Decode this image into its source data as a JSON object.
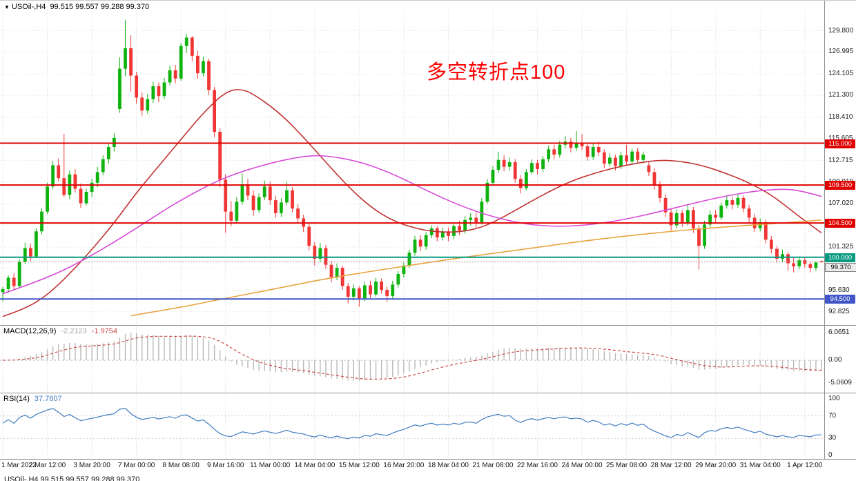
{
  "header": {
    "collapse_icon": "▼",
    "symbol": "USOil-,H4",
    "ohlc": "99.515 99.557 99.288 99.370"
  },
  "annotation": {
    "text": "多空转折点100",
    "color": "#FF0000"
  },
  "indicators": {
    "macd": {
      "label": "MACD(12,26,9)",
      "main_value": "-2.2123",
      "signal_value": "-1.9754",
      "axis_labels": [
        "6.0651",
        "0.00",
        "-5.0609"
      ]
    },
    "rsi": {
      "label": "RSI(14)",
      "value": "37.7607",
      "axis_labels": [
        "100",
        "70",
        "30",
        "0"
      ],
      "levels": [
        70,
        30
      ]
    }
  },
  "footer": {
    "clipped_text": "USOil-,H4 99.515 99.557 99.288 99.370"
  },
  "chart_data": {
    "type": "candlestick",
    "title": "USOil- H4 crude oil chart with horizontal support/resistance lines",
    "symbol": "USOil-",
    "timeframe": "H4",
    "ylim": [
      91.8,
      132.3
    ],
    "bars_per_label": 8,
    "colors": {
      "up": "#0fb30f",
      "down": "#f03535",
      "macd_hist": "#b8b8b8",
      "macd_signal": "#cc4a4a",
      "rsi": "#3f7cbf"
    },
    "price_axis_labels": [
      "129.800",
      "126.995",
      "124.105",
      "121.300",
      "118.410",
      "115.605",
      "112.715",
      "109.910",
      "107.020",
      "101.325",
      "98.520",
      "95.630",
      "92.825"
    ],
    "time_labels": [
      "1 Mar 2022",
      "2 Mar 12:00",
      "3 Mar 20:00",
      "7 Mar 00:00",
      "8 Mar 08:00",
      "9 Mar 16:00",
      "11 Mar 00:00",
      "14 Mar 04:00",
      "15 Mar 12:00",
      "16 Mar 20:00",
      "18 Mar 04:00",
      "21 Mar 08:00",
      "22 Mar 16:00",
      "24 Mar 00:00",
      "25 Mar 08:00",
      "28 Mar 12:00",
      "29 Mar 20:00",
      "31 Mar 04:00",
      "1 Apr 12:00"
    ],
    "hlines": [
      {
        "price": 115.0,
        "label": "115.000",
        "color": "#e00000",
        "width": 2
      },
      {
        "price": 109.5,
        "label": "109.500",
        "color": "#e00000",
        "width": 2
      },
      {
        "price": 104.5,
        "label": "104.500",
        "color": "#e00000",
        "width": 2
      },
      {
        "price": 100.0,
        "label": "100.000",
        "color": "#089981",
        "width": 2
      },
      {
        "price": 94.5,
        "label": "94.500",
        "color": "#4056c8",
        "width": 2
      }
    ],
    "current_price": {
      "price": 99.37,
      "label": "99.370"
    },
    "ma_lines": [
      {
        "name": "ma-red",
        "color": "#c13232",
        "points": [
          [
            0,
            92.2
          ],
          [
            4,
            93.2
          ],
          [
            8,
            95.0
          ],
          [
            12,
            97.8
          ],
          [
            16,
            101.0
          ],
          [
            20,
            104.5
          ],
          [
            24,
            108.5
          ],
          [
            28,
            112.0
          ],
          [
            32,
            115.5
          ],
          [
            36,
            119.0
          ],
          [
            40,
            121.8
          ],
          [
            43,
            122.2
          ],
          [
            46,
            121.0
          ],
          [
            50,
            118.8
          ],
          [
            54,
            115.8
          ],
          [
            58,
            112.5
          ],
          [
            62,
            109.3
          ],
          [
            66,
            106.6
          ],
          [
            70,
            104.8
          ],
          [
            74,
            103.8
          ],
          [
            78,
            103.3
          ],
          [
            82,
            103.3
          ],
          [
            86,
            103.9
          ],
          [
            90,
            105.3
          ],
          [
            94,
            107.0
          ],
          [
            98,
            108.6
          ],
          [
            102,
            110.0
          ],
          [
            106,
            111.0
          ],
          [
            110,
            111.8
          ],
          [
            114,
            112.4
          ],
          [
            118,
            112.8
          ],
          [
            122,
            112.6
          ],
          [
            126,
            112.0
          ],
          [
            130,
            111.0
          ],
          [
            134,
            109.8
          ],
          [
            138,
            108.2
          ],
          [
            141,
            106.5
          ],
          [
            144,
            104.8
          ],
          [
            147,
            103.2
          ]
        ]
      },
      {
        "name": "ma-magenta",
        "color": "#d84bd8",
        "points": [
          [
            0,
            95.2
          ],
          [
            8,
            97.2
          ],
          [
            16,
            100.2
          ],
          [
            24,
            103.8
          ],
          [
            32,
            107.6
          ],
          [
            40,
            110.6
          ],
          [
            48,
            112.4
          ],
          [
            54,
            113.3
          ],
          [
            58,
            113.4
          ],
          [
            64,
            112.6
          ],
          [
            70,
            111.0
          ],
          [
            76,
            108.8
          ],
          [
            82,
            106.8
          ],
          [
            88,
            105.3
          ],
          [
            94,
            104.3
          ],
          [
            100,
            104.0
          ],
          [
            106,
            104.3
          ],
          [
            112,
            105.0
          ],
          [
            118,
            106.0
          ],
          [
            124,
            107.1
          ],
          [
            130,
            108.1
          ],
          [
            136,
            108.8
          ],
          [
            141,
            109.0
          ],
          [
            144,
            108.6
          ],
          [
            147,
            108.0
          ]
        ]
      },
      {
        "name": "ma-orange",
        "color": "#e8a33d",
        "points": [
          [
            23,
            92.3
          ],
          [
            32,
            93.4
          ],
          [
            40,
            94.6
          ],
          [
            48,
            95.7
          ],
          [
            56,
            96.9
          ],
          [
            64,
            97.9
          ],
          [
            72,
            98.8
          ],
          [
            80,
            99.7
          ],
          [
            88,
            100.5
          ],
          [
            96,
            101.3
          ],
          [
            104,
            102.1
          ],
          [
            112,
            102.8
          ],
          [
            120,
            103.4
          ],
          [
            128,
            103.9
          ],
          [
            136,
            104.3
          ],
          [
            142,
            104.6
          ],
          [
            147,
            104.9
          ]
        ]
      }
    ],
    "candles": [
      [
        95.4,
        96.1,
        94.2,
        95.8
      ],
      [
        95.8,
        97.6,
        95.3,
        97.3
      ],
      [
        97.3,
        97.9,
        95.7,
        96.2
      ],
      [
        96.2,
        99.8,
        96.0,
        99.4
      ],
      [
        99.4,
        101.9,
        99.1,
        101.2
      ],
      [
        101.2,
        101.8,
        99.5,
        100.1
      ],
      [
        100.1,
        103.8,
        99.9,
        103.4
      ],
      [
        103.4,
        106.5,
        103.0,
        106.0
      ],
      [
        106.0,
        109.8,
        105.7,
        109.3
      ],
      [
        109.3,
        112.7,
        108.9,
        112.1
      ],
      [
        112.1,
        113.0,
        110.0,
        110.4
      ],
      [
        110.4,
        116.2,
        107.9,
        108.2
      ],
      [
        108.2,
        111.4,
        107.6,
        110.9
      ],
      [
        110.9,
        111.6,
        108.5,
        109.0
      ],
      [
        109.0,
        109.7,
        106.5,
        107.1
      ],
      [
        107.1,
        109.0,
        106.8,
        108.6
      ],
      [
        108.6,
        110.3,
        107.9,
        109.8
      ],
      [
        109.8,
        111.9,
        109.2,
        111.2
      ],
      [
        111.2,
        113.4,
        110.8,
        112.9
      ],
      [
        112.9,
        115.0,
        112.3,
        114.5
      ],
      [
        114.5,
        116.3,
        113.9,
        115.7
      ],
      [
        119.5,
        126.3,
        119.0,
        124.8
      ],
      [
        124.8,
        131.2,
        123.8,
        127.5
      ],
      [
        127.5,
        129.2,
        121.8,
        123.9
      ],
      [
        123.9,
        124.4,
        120.2,
        121.0
      ],
      [
        121.0,
        121.7,
        118.6,
        119.3
      ],
      [
        119.3,
        121.5,
        118.9,
        120.8
      ],
      [
        120.8,
        123.1,
        120.3,
        122.5
      ],
      [
        122.5,
        123.0,
        120.4,
        121.2
      ],
      [
        121.2,
        123.6,
        120.8,
        123.0
      ],
      [
        123.0,
        125.2,
        122.6,
        124.6
      ],
      [
        124.6,
        125.3,
        122.9,
        123.5
      ],
      [
        123.5,
        128.2,
        123.2,
        127.8
      ],
      [
        127.8,
        129.4,
        126.9,
        128.9
      ],
      [
        128.9,
        129.1,
        125.8,
        126.5
      ],
      [
        126.5,
        127.2,
        123.5,
        124.2
      ],
      [
        124.2,
        126.4,
        123.8,
        125.8
      ],
      [
        125.8,
        126.1,
        121.3,
        122.0
      ],
      [
        122.0,
        122.4,
        115.8,
        116.5
      ],
      [
        116.5,
        117.0,
        109.2,
        110.2
      ],
      [
        110.2,
        110.9,
        103.2,
        106.0
      ],
      [
        106.0,
        107.4,
        104.1,
        104.8
      ],
      [
        104.8,
        107.9,
        104.5,
        107.3
      ],
      [
        107.3,
        111.0,
        106.9,
        109.6
      ],
      [
        109.6,
        110.3,
        107.5,
        108.1
      ],
      [
        108.1,
        108.8,
        105.4,
        106.2
      ],
      [
        106.2,
        108.4,
        105.8,
        107.9
      ],
      [
        107.9,
        110.1,
        107.5,
        109.3
      ],
      [
        109.3,
        109.9,
        106.9,
        107.5
      ],
      [
        107.5,
        108.1,
        105.2,
        105.8
      ],
      [
        105.8,
        107.8,
        105.3,
        107.2
      ],
      [
        107.2,
        109.9,
        106.8,
        108.8
      ],
      [
        108.8,
        109.2,
        105.9,
        106.4
      ],
      [
        106.4,
        107.0,
        104.6,
        105.1
      ],
      [
        105.1,
        105.6,
        103.3,
        104.0
      ],
      [
        104.0,
        104.4,
        100.9,
        101.5
      ],
      [
        101.5,
        102.0,
        98.9,
        99.8
      ],
      [
        99.8,
        101.9,
        99.4,
        101.2
      ],
      [
        101.2,
        101.6,
        98.5,
        99.0
      ],
      [
        99.0,
        99.5,
        96.7,
        97.4
      ],
      [
        97.4,
        99.2,
        97.0,
        98.6
      ],
      [
        98.6,
        98.9,
        95.7,
        96.2
      ],
      [
        96.2,
        96.6,
        93.9,
        94.8
      ],
      [
        94.8,
        96.4,
        94.3,
        95.9
      ],
      [
        95.9,
        96.2,
        93.5,
        94.6
      ],
      [
        94.6,
        96.8,
        94.2,
        96.3
      ],
      [
        96.3,
        96.9,
        94.6,
        95.1
      ],
      [
        95.1,
        97.3,
        94.8,
        96.8
      ],
      [
        96.8,
        97.2,
        95.2,
        95.7
      ],
      [
        95.7,
        96.1,
        94.1,
        94.9
      ],
      [
        94.9,
        96.9,
        94.5,
        96.4
      ],
      [
        96.4,
        98.2,
        96.0,
        97.8
      ],
      [
        97.8,
        99.3,
        97.3,
        98.9
      ],
      [
        98.9,
        101.0,
        98.6,
        100.6
      ],
      [
        100.6,
        102.8,
        100.2,
        102.3
      ],
      [
        102.3,
        102.9,
        100.8,
        101.4
      ],
      [
        101.4,
        103.3,
        101.0,
        102.9
      ],
      [
        102.9,
        104.2,
        102.5,
        103.8
      ],
      [
        103.8,
        104.1,
        102.1,
        102.6
      ],
      [
        102.6,
        103.9,
        102.2,
        103.4
      ],
      [
        103.4,
        103.9,
        102.1,
        102.8
      ],
      [
        102.8,
        104.6,
        102.4,
        104.1
      ],
      [
        104.1,
        104.8,
        102.9,
        103.5
      ],
      [
        103.5,
        105.4,
        103.1,
        104.9
      ],
      [
        104.9,
        105.8,
        104.2,
        105.2
      ],
      [
        105.2,
        105.9,
        103.9,
        104.6
      ],
      [
        104.6,
        107.8,
        104.3,
        107.3
      ],
      [
        107.3,
        110.3,
        107.0,
        109.8
      ],
      [
        109.8,
        112.0,
        109.4,
        111.5
      ],
      [
        111.5,
        113.9,
        111.1,
        112.8
      ],
      [
        112.8,
        113.4,
        111.3,
        111.9
      ],
      [
        111.9,
        113.1,
        111.4,
        112.5
      ],
      [
        112.5,
        112.9,
        109.8,
        110.3
      ],
      [
        110.3,
        110.8,
        108.4,
        109.1
      ],
      [
        109.1,
        111.6,
        108.8,
        111.2
      ],
      [
        111.2,
        112.9,
        110.9,
        112.4
      ],
      [
        112.4,
        112.8,
        110.9,
        111.6
      ],
      [
        111.6,
        113.3,
        111.2,
        112.9
      ],
      [
        112.9,
        114.7,
        112.5,
        114.2
      ],
      [
        114.2,
        114.8,
        112.9,
        113.5
      ],
      [
        113.5,
        115.3,
        113.1,
        114.8
      ],
      [
        114.8,
        115.9,
        114.3,
        115.2
      ],
      [
        115.2,
        115.7,
        113.8,
        114.4
      ],
      [
        114.4,
        116.6,
        114.0,
        115.0
      ],
      [
        115.0,
        116.2,
        114.1,
        114.6
      ],
      [
        114.6,
        115.1,
        112.7,
        113.2
      ],
      [
        113.2,
        115.0,
        112.8,
        114.5
      ],
      [
        114.5,
        115.2,
        113.3,
        113.8
      ],
      [
        113.8,
        114.2,
        111.7,
        112.3
      ],
      [
        112.3,
        113.7,
        111.9,
        113.1
      ],
      [
        113.1,
        113.5,
        111.4,
        112.0
      ],
      [
        112.0,
        113.9,
        111.6,
        113.4
      ],
      [
        113.4,
        114.8,
        112.1,
        112.6
      ],
      [
        112.6,
        114.3,
        112.2,
        113.9
      ],
      [
        113.9,
        114.4,
        112.3,
        112.8
      ],
      [
        112.8,
        113.9,
        112.4,
        113.5
      ],
      [
        112.1,
        112.6,
        110.7,
        111.2
      ],
      [
        111.2,
        111.7,
        108.9,
        109.5
      ],
      [
        109.5,
        110.0,
        107.2,
        107.8
      ],
      [
        107.8,
        108.3,
        105.3,
        105.9
      ],
      [
        105.9,
        106.4,
        103.5,
        104.2
      ],
      [
        104.2,
        106.3,
        103.8,
        105.8
      ],
      [
        105.8,
        106.2,
        104.0,
        104.5
      ],
      [
        104.5,
        106.9,
        104.1,
        106.2
      ],
      [
        106.2,
        106.6,
        103.2,
        103.8
      ],
      [
        103.8,
        104.2,
        98.4,
        101.5
      ],
      [
        101.5,
        104.8,
        101.1,
        104.3
      ],
      [
        104.3,
        106.1,
        103.9,
        105.6
      ],
      [
        105.6,
        106.2,
        104.4,
        105.2
      ],
      [
        105.2,
        107.2,
        104.9,
        106.8
      ],
      [
        106.8,
        108.1,
        106.4,
        107.5
      ],
      [
        107.5,
        108.0,
        106.3,
        106.9
      ],
      [
        106.9,
        108.2,
        106.5,
        107.8
      ],
      [
        107.8,
        108.1,
        105.9,
        106.4
      ],
      [
        106.4,
        106.9,
        104.6,
        105.2
      ],
      [
        105.2,
        105.7,
        103.3,
        103.8
      ],
      [
        103.8,
        105.1,
        103.4,
        104.6
      ],
      [
        104.6,
        104.9,
        101.8,
        102.3
      ],
      [
        102.3,
        102.8,
        100.5,
        101.1
      ],
      [
        101.1,
        101.5,
        99.3,
        99.8
      ],
      [
        99.8,
        101.0,
        99.4,
        100.4
      ],
      [
        100.4,
        100.7,
        98.2,
        99.2
      ],
      [
        99.2,
        99.9,
        98.0,
        98.8
      ],
      [
        98.8,
        100.1,
        98.4,
        99.6
      ],
      [
        99.6,
        99.9,
        98.6,
        99.1
      ],
      [
        99.1,
        99.4,
        98.0,
        98.6
      ],
      [
        98.6,
        99.5,
        98.2,
        99.3
      ],
      [
        99.52,
        99.56,
        99.29,
        99.37
      ]
    ]
  }
}
